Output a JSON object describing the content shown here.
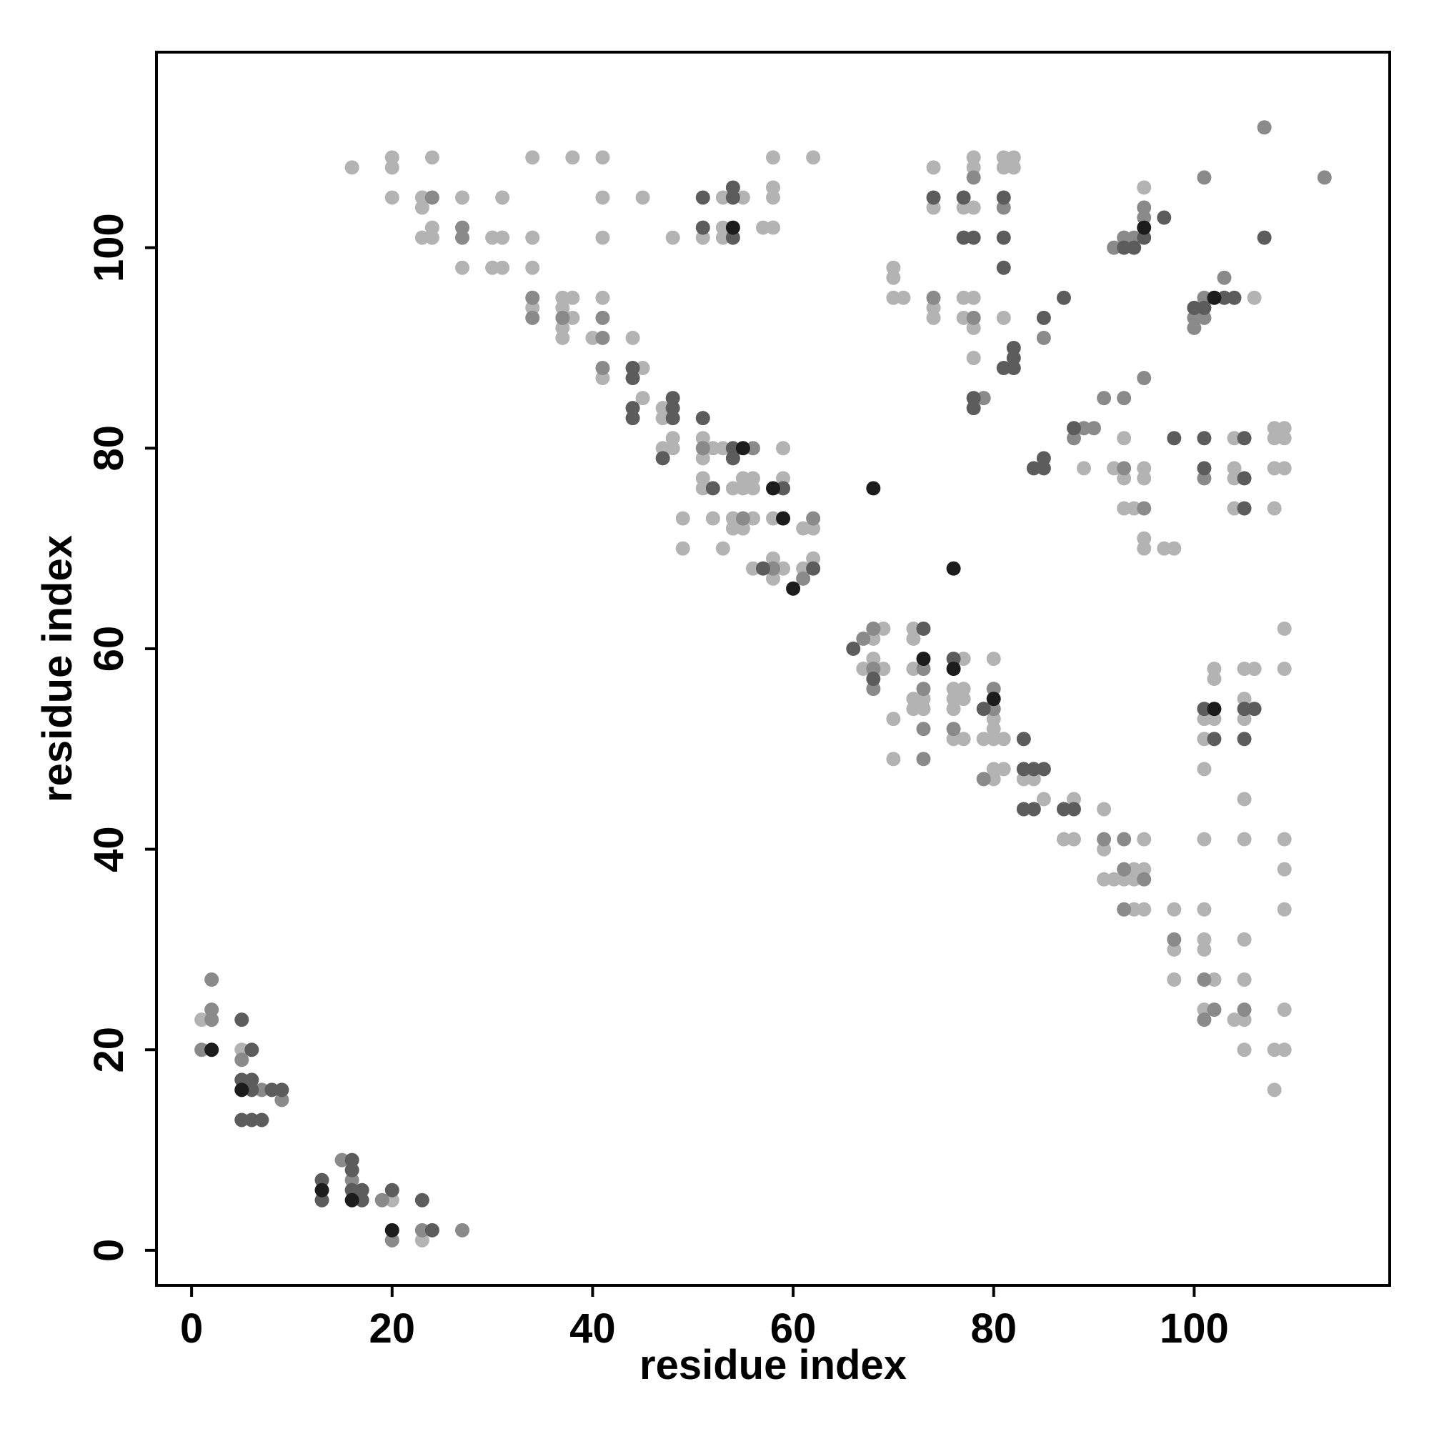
{
  "chart_data": {
    "type": "scatter",
    "x_label": "residue index",
    "y_label": "residue index",
    "xlim": [
      -3.5,
      119.5
    ],
    "ylim": [
      -3.5,
      119.5
    ],
    "xticks": [
      0,
      20,
      40,
      60,
      80,
      100
    ],
    "yticks": [
      0,
      20,
      40,
      60,
      80,
      100
    ],
    "grid": false,
    "series": [
      {
        "color": "#b3b3b3",
        "x": [
          1,
          5,
          20,
          23,
          16,
          20,
          20,
          20,
          23,
          23,
          24,
          23,
          24,
          24,
          27,
          27,
          30,
          31,
          31,
          30,
          31,
          34,
          34,
          34,
          34,
          37,
          38,
          37,
          38,
          37,
          37,
          38,
          41,
          41,
          41,
          41,
          40,
          45,
          44,
          41,
          45,
          45,
          47,
          47,
          48,
          47,
          48,
          48,
          51,
          53,
          53,
          53,
          55,
          57,
          58,
          58,
          58,
          58,
          62,
          51,
          51,
          52,
          53,
          51,
          51,
          54,
          55,
          55,
          56,
          56,
          59,
          59,
          49,
          52,
          54,
          56,
          54,
          55,
          58,
          49,
          53,
          56,
          58,
          59,
          58,
          61,
          61,
          62,
          62,
          69,
          68,
          68,
          67,
          69,
          72,
          72,
          72,
          72,
          73,
          72,
          73,
          70,
          70,
          77,
          76,
          77,
          76,
          77,
          76,
          76,
          77,
          80,
          80,
          80,
          79,
          80,
          81,
          80,
          81,
          80,
          83,
          84,
          85,
          88,
          87,
          88,
          91,
          91,
          91,
          92,
          93,
          94,
          94,
          95,
          95,
          94,
          95,
          98,
          98,
          98,
          101,
          101,
          101,
          102,
          101,
          104,
          105,
          105,
          105,
          105,
          108,
          109,
          108,
          109,
          109,
          109,
          109,
          105,
          105,
          101,
          101,
          101,
          101,
          102,
          102,
          102,
          105,
          106,
          105,
          105,
          109,
          109,
          74,
          74,
          77,
          78,
          78,
          78,
          81,
          82,
          81,
          82,
          70,
          70,
          70,
          71,
          74,
          74,
          77,
          78,
          77,
          78,
          78,
          81,
          89,
          92,
          93,
          93,
          95,
          95,
          93,
          94,
          95,
          95,
          97,
          98,
          95,
          106,
          104,
          104,
          104,
          104,
          108,
          109,
          108,
          109,
          108,
          109,
          108
        ],
        "y": [
          23,
          20,
          5,
          1,
          108,
          109,
          108,
          105,
          105,
          104,
          109,
          101,
          101,
          102,
          105,
          98,
          101,
          101,
          105,
          98,
          98,
          109,
          101,
          98,
          94,
          95,
          95,
          94,
          93,
          91,
          92,
          109,
          109,
          105,
          101,
          95,
          91,
          105,
          91,
          87,
          88,
          85,
          84,
          83,
          81,
          80,
          80,
          101,
          101,
          105,
          102,
          101,
          105,
          102,
          102,
          109,
          106,
          105,
          109,
          81,
          79,
          80,
          80,
          77,
          76,
          76,
          77,
          76,
          77,
          76,
          77,
          80,
          73,
          73,
          73,
          73,
          72,
          72,
          73,
          70,
          70,
          68,
          69,
          68,
          67,
          68,
          72,
          72,
          69,
          62,
          61,
          59,
          58,
          58,
          62,
          61,
          58,
          55,
          55,
          54,
          54,
          53,
          49,
          59,
          56,
          56,
          55,
          55,
          54,
          51,
          51,
          59,
          53,
          52,
          51,
          51,
          51,
          48,
          48,
          47,
          47,
          47,
          45,
          45,
          41,
          41,
          44,
          40,
          37,
          37,
          37,
          38,
          37,
          41,
          38,
          34,
          34,
          34,
          30,
          27,
          34,
          31,
          30,
          27,
          24,
          23,
          23,
          27,
          31,
          20,
          20,
          20,
          16,
          24,
          34,
          38,
          41,
          41,
          45,
          41,
          48,
          51,
          53,
          53,
          57,
          58,
          58,
          58,
          55,
          53,
          58,
          62,
          104,
          108,
          104,
          104,
          109,
          108,
          109,
          109,
          108,
          108,
          98,
          97,
          95,
          95,
          94,
          93,
          95,
          95,
          93,
          92,
          89,
          93,
          78,
          78,
          77,
          81,
          78,
          77,
          74,
          74,
          71,
          70,
          70,
          70,
          106,
          95,
          81,
          78,
          77,
          74,
          82,
          82,
          81,
          81,
          78,
          78,
          74
        ]
      },
      {
        "color": "#8a8a8a",
        "x": [
          1,
          2,
          2,
          2,
          5,
          7,
          9,
          15,
          16,
          19,
          20,
          23,
          27,
          24,
          27,
          27,
          34,
          34,
          37,
          41,
          41,
          41,
          51,
          56,
          55,
          58,
          61,
          62,
          67,
          68,
          68,
          68,
          73,
          73,
          73,
          73,
          76,
          80,
          80,
          79,
          91,
          93,
          93,
          95,
          93,
          98,
          101,
          101,
          102,
          105,
          78,
          81,
          74,
          78,
          79,
          85,
          89,
          90,
          88,
          91,
          93,
          93,
          95,
          95,
          92,
          93,
          94,
          95,
          95,
          101,
          100,
          100,
          101,
          101,
          103,
          107,
          113,
          101
        ],
        "y": [
          20,
          27,
          24,
          23,
          19,
          16,
          15,
          9,
          7,
          5,
          1,
          2,
          2,
          105,
          102,
          101,
          95,
          93,
          93,
          93,
          91,
          88,
          80,
          80,
          73,
          68,
          67,
          73,
          61,
          62,
          58,
          56,
          58,
          56,
          52,
          49,
          52,
          54,
          56,
          47,
          41,
          41,
          38,
          37,
          34,
          31,
          27,
          23,
          24,
          24,
          107,
          104,
          95,
          93,
          85,
          91,
          82,
          82,
          81,
          85,
          85,
          78,
          74,
          87,
          100,
          101,
          101,
          103,
          104,
          107,
          93,
          92,
          95,
          93,
          97,
          112,
          107,
          77
        ]
      },
      {
        "color": "#5c5c5c",
        "x": [
          5,
          6,
          5,
          6,
          6,
          8,
          9,
          5,
          6,
          7,
          13,
          13,
          16,
          16,
          16,
          17,
          17,
          20,
          23,
          24,
          44,
          44,
          44,
          44,
          48,
          48,
          48,
          47,
          51,
          51,
          51,
          54,
          54,
          54,
          54,
          54,
          52,
          59,
          57,
          62,
          66,
          68,
          73,
          76,
          79,
          83,
          83,
          84,
          85,
          83,
          84,
          87,
          88,
          101,
          102,
          105,
          106,
          105,
          74,
          77,
          77,
          78,
          81,
          81,
          81,
          78,
          78,
          82,
          82,
          81,
          82,
          85,
          87,
          84,
          85,
          85,
          88,
          98,
          93,
          94,
          95,
          97,
          100,
          101,
          103,
          104,
          107,
          101,
          101,
          105,
          105,
          105
        ],
        "y": [
          23,
          20,
          17,
          17,
          16,
          16,
          16,
          13,
          13,
          13,
          7,
          5,
          9,
          8,
          6,
          6,
          5,
          6,
          5,
          2,
          88,
          87,
          84,
          83,
          85,
          84,
          83,
          79,
          83,
          105,
          102,
          106,
          105,
          101,
          80,
          79,
          76,
          76,
          68,
          68,
          60,
          57,
          62,
          59,
          54,
          51,
          48,
          48,
          48,
          44,
          44,
          44,
          44,
          54,
          51,
          54,
          54,
          51,
          105,
          105,
          101,
          101,
          105,
          101,
          98,
          85,
          84,
          90,
          89,
          88,
          88,
          93,
          95,
          78,
          79,
          78,
          82,
          81,
          100,
          100,
          101,
          103,
          94,
          94,
          95,
          95,
          101,
          81,
          78,
          81,
          77,
          74
        ]
      },
      {
        "color": "#1c1c1c",
        "x": [
          2,
          5,
          13,
          16,
          20,
          54,
          55,
          58,
          59,
          60,
          68,
          76,
          73,
          76,
          80,
          102,
          95,
          102
        ],
        "y": [
          20,
          16,
          6,
          5,
          2,
          102,
          80,
          76,
          73,
          66,
          76,
          68,
          59,
          58,
          55,
          54,
          102,
          95
        ]
      }
    ]
  }
}
